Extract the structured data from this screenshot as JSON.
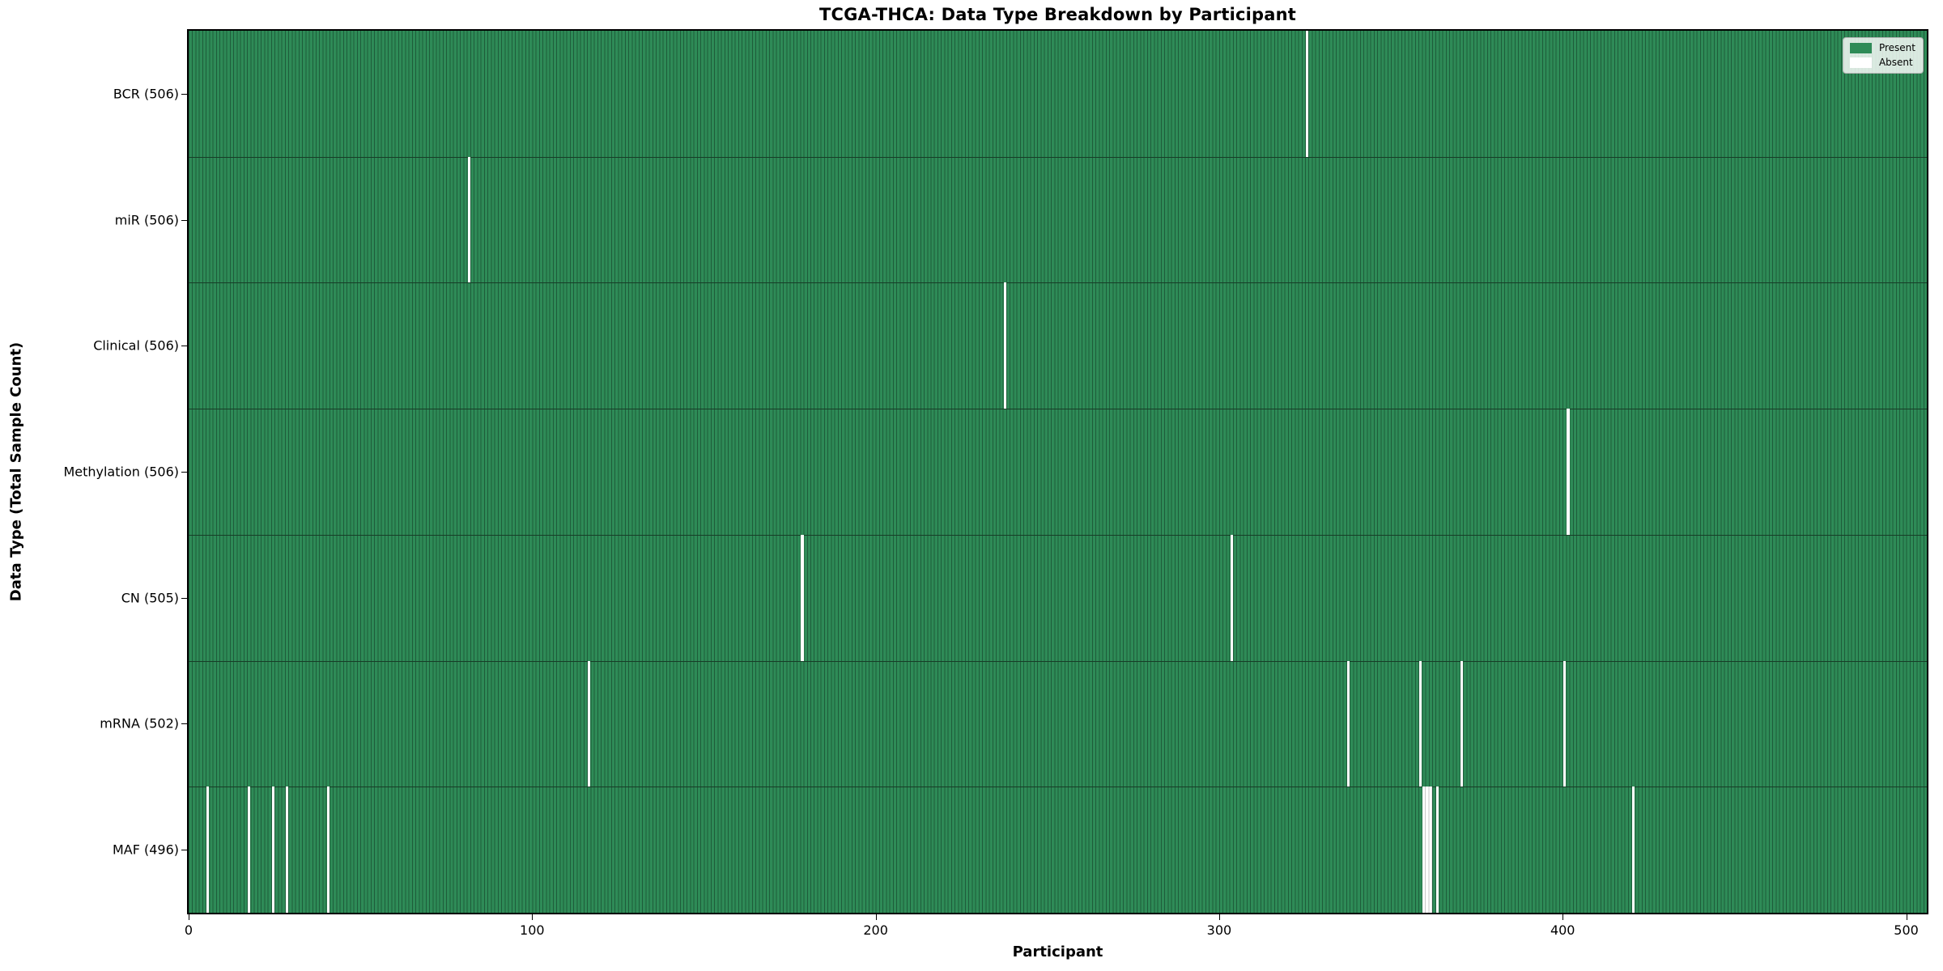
{
  "chart_data": {
    "type": "heatmap",
    "title": "TCGA-THCA: Data Type Breakdown by Participant",
    "xlabel": "Participant",
    "ylabel": "Data Type (Total Sample Count)",
    "x_ticks": [
      "0",
      "100",
      "200",
      "300",
      "400",
      "500"
    ],
    "x_tick_values": [
      0,
      100,
      200,
      300,
      400,
      500
    ],
    "x_range": [
      0,
      506
    ],
    "n_participants": 506,
    "grid": false,
    "legend": {
      "position": "upper-right",
      "entries": [
        {
          "label": "Present",
          "color": "#2e8b57"
        },
        {
          "label": "Absent",
          "color": "#ffffff"
        }
      ]
    },
    "rows": [
      {
        "name": "BCR",
        "label": "BCR (506)",
        "total_samples": 506,
        "absent_participants": [
          325
        ]
      },
      {
        "name": "miR",
        "label": "miR (506)",
        "total_samples": 506,
        "absent_participants": [
          81
        ]
      },
      {
        "name": "Clinical",
        "label": "Clinical (506)",
        "total_samples": 506,
        "absent_participants": [
          237
        ]
      },
      {
        "name": "Methylation",
        "label": "Methylation (506)",
        "total_samples": 506,
        "absent_participants": [
          401
        ]
      },
      {
        "name": "CN",
        "label": "CN (505)",
        "total_samples": 505,
        "absent_participants": [
          178,
          303
        ]
      },
      {
        "name": "mRNA",
        "label": "mRNA (502)",
        "total_samples": 502,
        "absent_participants": [
          116,
          337,
          358,
          370,
          400
        ]
      },
      {
        "name": "MAF",
        "label": "MAF (496)",
        "total_samples": 496,
        "absent_participants": [
          5,
          17,
          24,
          28,
          40,
          359,
          360,
          361,
          363,
          420
        ]
      }
    ],
    "colors": {
      "present": "#2e8b57",
      "absent": "#ffffff",
      "bar_edge": "#1e5c3a",
      "row_divider": "#173d27",
      "absent_divider": "#c8c8c8",
      "spine": "#000000"
    }
  }
}
